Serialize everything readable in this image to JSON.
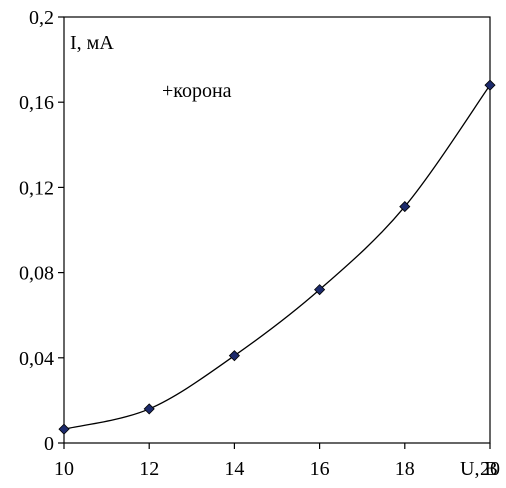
{
  "chart_data": {
    "type": "scatter",
    "title": "",
    "xlabel": "U, В",
    "ylabel": "I, мА",
    "annotation": "+корона",
    "xlim": [
      10,
      20
    ],
    "ylim": [
      0,
      0.2
    ],
    "x_ticks": [
      10,
      12,
      14,
      16,
      18,
      20
    ],
    "x_tick_labels": [
      "10",
      "12",
      "14",
      "16",
      "18",
      "20"
    ],
    "y_ticks": [
      0,
      0.04,
      0.08,
      0.12,
      0.16,
      0.2
    ],
    "y_tick_labels": [
      "0",
      "0,04",
      "0,08",
      "0,12",
      "0,16",
      "0,2"
    ],
    "grid": false,
    "series": [
      {
        "x": [
          10,
          12,
          14,
          16,
          18,
          20
        ],
        "y": [
          0.0065,
          0.016,
          0.041,
          0.072,
          0.111,
          0.168
        ],
        "smooth": true,
        "line_color": "#000000",
        "marker": "diamond",
        "marker_color": "#1c2a6b"
      }
    ]
  }
}
